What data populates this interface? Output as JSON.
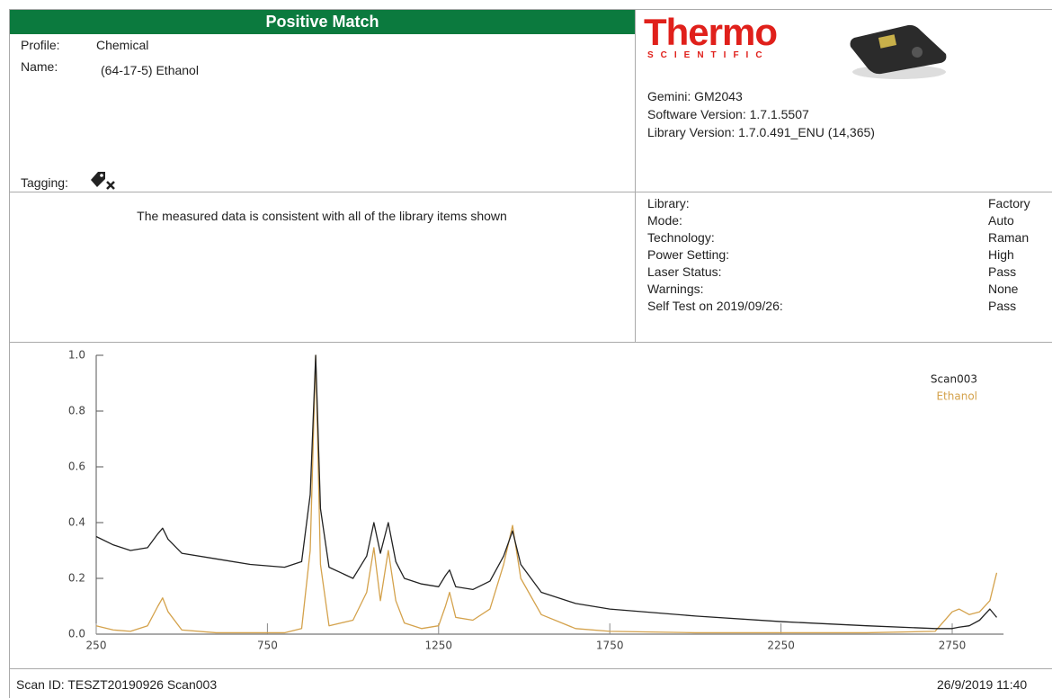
{
  "header": {
    "title": "Positive Match",
    "profile_label": "Profile:",
    "profile": "Chemical",
    "name_label": "Name:",
    "name": "(64-17-5) Ethanol",
    "tagging_label": "Tagging:"
  },
  "brand": {
    "name": "Thermo",
    "sub": "SCIENTIFIC"
  },
  "device": [
    "Gemini: GM2043",
    "Software Version: 1.7.1.5507",
    "Library Version: 1.7.0.491_ENU (14,365)"
  ],
  "message": "The measured data is consistent with all of the library items shown",
  "settings": [
    [
      "Library:",
      "Factory"
    ],
    [
      "Mode:",
      "Auto"
    ],
    [
      "Technology:",
      "Raman"
    ],
    [
      "Power Setting:",
      "High"
    ],
    [
      "Laser Status:",
      "Pass"
    ],
    [
      "Warnings:",
      "None"
    ],
    [
      "Self Test on 2019/09/26:",
      "Pass"
    ]
  ],
  "chart_data": {
    "type": "line",
    "x": [
      250,
      300,
      350,
      400,
      430,
      444,
      460,
      500,
      600,
      700,
      800,
      850,
      875,
      891,
      905,
      930,
      1000,
      1040,
      1061,
      1080,
      1103,
      1125,
      1150,
      1200,
      1250,
      1270,
      1282,
      1300,
      1350,
      1400,
      1440,
      1466,
      1490,
      1550,
      1650,
      1750,
      2000,
      2250,
      2500,
      2700,
      2750,
      2770,
      2800,
      2830,
      2860,
      2880
    ],
    "series": [
      {
        "name": "Scan003",
        "color": "#222222",
        "values": [
          0.35,
          0.32,
          0.3,
          0.31,
          0.36,
          0.38,
          0.34,
          0.29,
          0.27,
          0.25,
          0.24,
          0.26,
          0.5,
          1.0,
          0.45,
          0.24,
          0.2,
          0.28,
          0.4,
          0.29,
          0.4,
          0.26,
          0.2,
          0.18,
          0.17,
          0.21,
          0.23,
          0.17,
          0.16,
          0.19,
          0.28,
          0.37,
          0.25,
          0.15,
          0.11,
          0.09,
          0.065,
          0.045,
          0.03,
          0.02,
          0.02,
          0.025,
          0.03,
          0.05,
          0.09,
          0.06
        ]
      },
      {
        "name": "Ethanol",
        "color": "#d4a24c",
        "values": [
          0.03,
          0.015,
          0.01,
          0.03,
          0.1,
          0.13,
          0.08,
          0.015,
          0.005,
          0.005,
          0.005,
          0.02,
          0.3,
          1.0,
          0.25,
          0.03,
          0.05,
          0.15,
          0.31,
          0.12,
          0.3,
          0.12,
          0.04,
          0.02,
          0.03,
          0.1,
          0.15,
          0.06,
          0.05,
          0.09,
          0.25,
          0.39,
          0.2,
          0.07,
          0.02,
          0.01,
          0.005,
          0.005,
          0.005,
          0.01,
          0.08,
          0.09,
          0.07,
          0.08,
          0.12,
          0.22
        ]
      }
    ],
    "xlim": [
      250,
      2900
    ],
    "ylim": [
      0,
      1
    ],
    "xticks": [
      250,
      750,
      1250,
      1750,
      2250,
      2750
    ],
    "yticks": [
      {
        "value": 0,
        "label": "0.0"
      },
      0.2,
      0.4,
      0.6,
      0.8,
      {
        "value": 1,
        "label": "1.0"
      }
    ],
    "grid": false
  },
  "footer": {
    "scan_id": "Scan ID: TESZT20190926 Scan003",
    "timestamp": "26/9/2019 11:40"
  }
}
